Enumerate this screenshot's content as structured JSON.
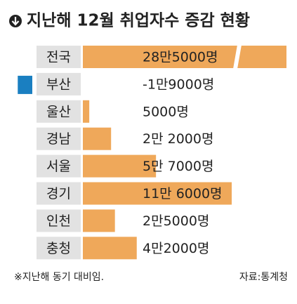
{
  "chart_data": {
    "type": "bar",
    "title": "지난해 12월 취업자수 증감 현황",
    "categories": [
      "전국",
      "부산",
      "울산",
      "경남",
      "서울",
      "경기",
      "인천",
      "충청"
    ],
    "values": [
      285000,
      -19000,
      5000,
      22000,
      57000,
      116000,
      25000,
      42000
    ],
    "value_labels": [
      "28만5000명",
      "-1만9000명",
      "5000명",
      "2만 2000명",
      "5만 7000명",
      "11만 6000명",
      "2만5000명",
      "4만2000명"
    ],
    "color": "#efa85a",
    "negative_color": "#1a7fc1",
    "note": "※지난해 동기 대비임.",
    "source": "자료:통계청"
  }
}
